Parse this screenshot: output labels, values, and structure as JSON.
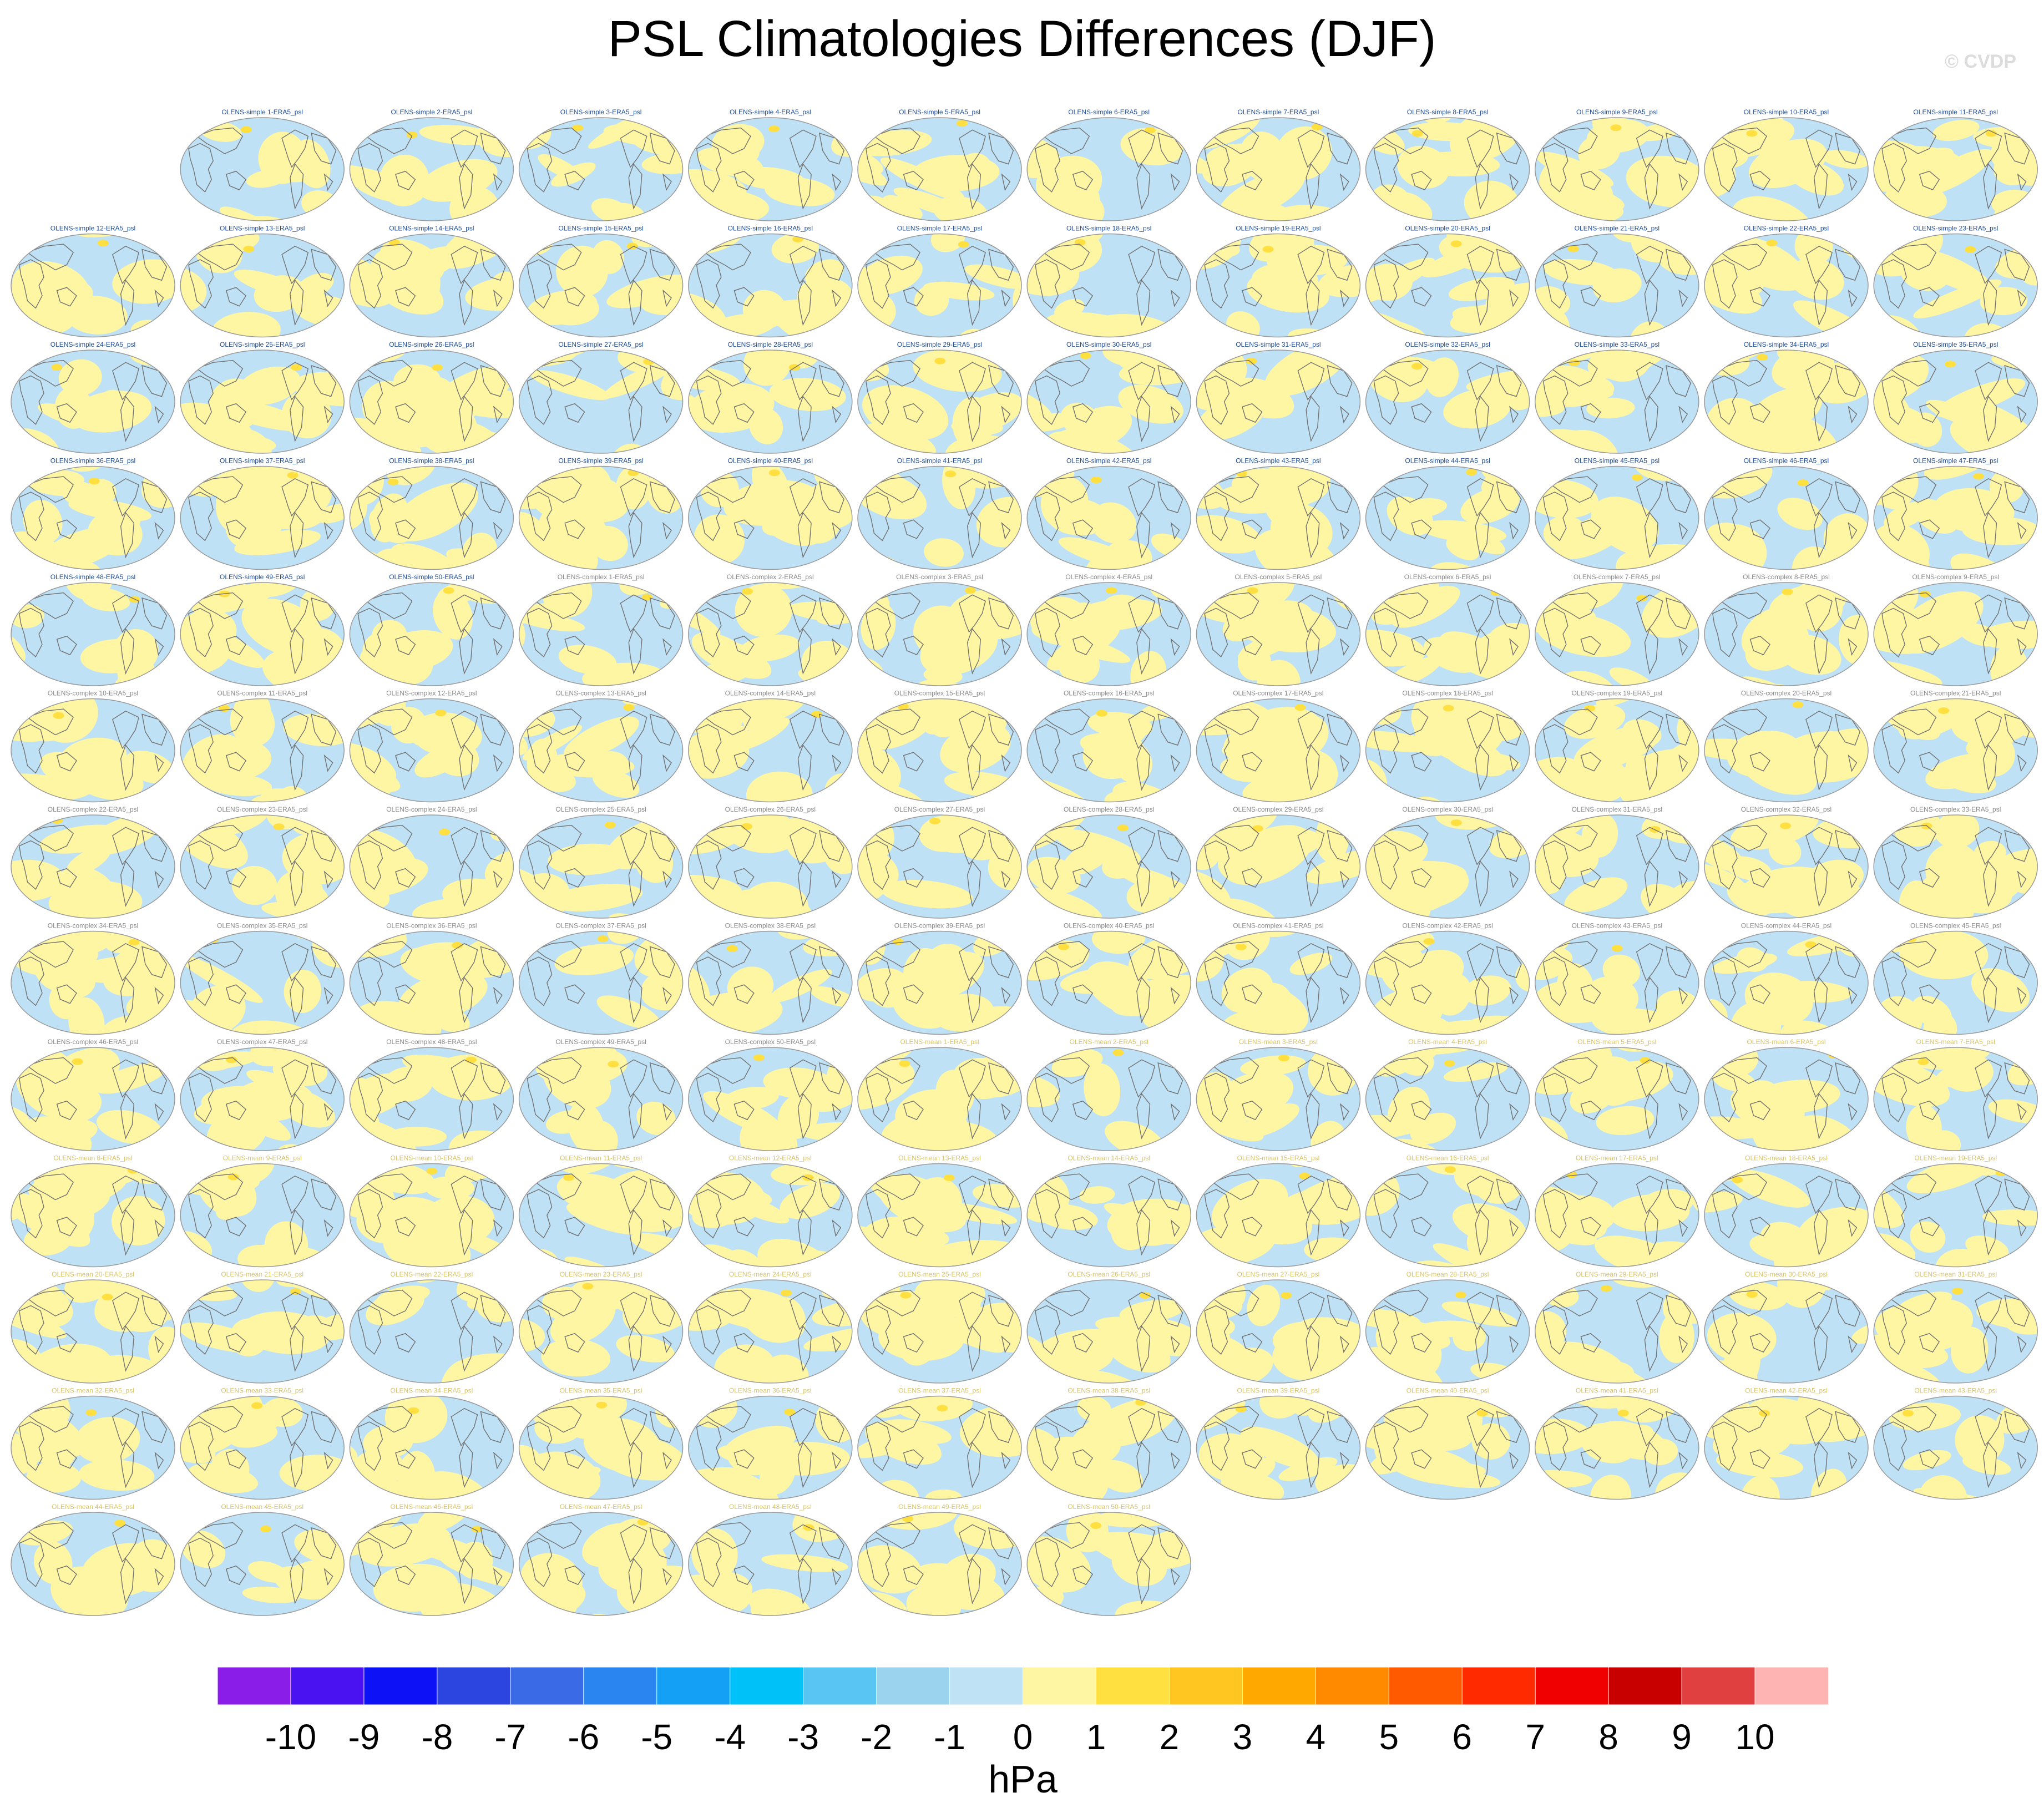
{
  "title": "PSL Climatologies Differences (DJF)",
  "watermark": "© CVDP",
  "colors": {
    "simple_label": "#1f4e99",
    "complex_label": "#8a8a8a",
    "mean_label": "#d8c46a",
    "negative_fill": "#bfe1f5",
    "positive_fill": "#fff6a3",
    "coast": "#707070"
  },
  "chart_data": {
    "type": "heatmap",
    "projection": "global map panels",
    "panel_groups": [
      {
        "prefix": "OLENS-simple ",
        "suffix": "-ERA5_psl",
        "count": 50,
        "label_color": "#1f4e99"
      },
      {
        "prefix": "OLENS-complex ",
        "suffix": "-ERA5_psl",
        "count": 50,
        "label_color": "#8a8a8a"
      },
      {
        "prefix": "OLENS-mean ",
        "suffix": "-ERA5_psl",
        "count": 50,
        "label_color": "#d8c46a"
      }
    ],
    "colorbar": {
      "label": "hPa",
      "ticks": [
        "-10",
        "-9",
        "-8",
        "-7",
        "-6",
        "-5",
        "-4",
        "-3",
        "-2",
        "-1",
        "0",
        "1",
        "2",
        "3",
        "4",
        "5",
        "6",
        "7",
        "8",
        "9",
        "10"
      ],
      "colors": [
        "#8a1ee8",
        "#4a12f0",
        "#0c12f5",
        "#2d45e0",
        "#3a6ae6",
        "#2a85f0",
        "#13a0f5",
        "#00c1f8",
        "#58c5f2",
        "#9bd2ee",
        "#bfe2f5",
        "#fff6a3",
        "#ffe040",
        "#ffc520",
        "#ffa800",
        "#ff8a00",
        "#ff5a00",
        "#ff2a00",
        "#f00000",
        "#c80000",
        "#e04040",
        "#ffb4b4"
      ]
    }
  }
}
